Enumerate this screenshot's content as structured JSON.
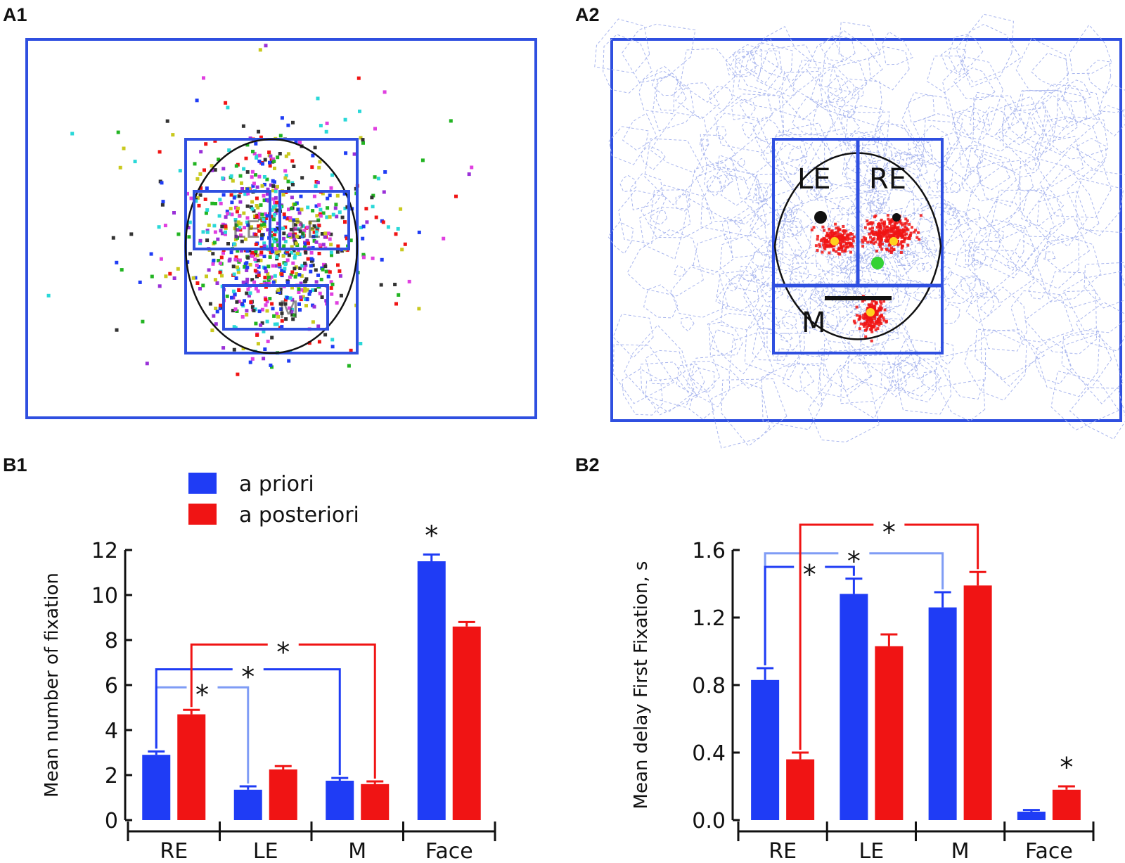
{
  "panels": {
    "a1": "A1",
    "a2": "A2",
    "b1": "B1",
    "b2": "B2"
  },
  "roi_labels": {
    "left_eye": "LE",
    "right_eye": "RE",
    "mouth": "M"
  },
  "colors": {
    "a_priori": "#1f3cf5",
    "a_posteriori": "#f01414",
    "frame": "#2f4fe0",
    "voronoi": "#a9b6ee",
    "sig_line_blue": "#1f3cf5",
    "sig_line_light_blue": "#7f9cf5",
    "sig_line_red": "#f01414"
  },
  "legend": [
    {
      "label": "a priori",
      "color": "#1f3cf5"
    },
    {
      "label": "a posteriori",
      "color": "#f01414"
    }
  ],
  "significance_symbol": "*",
  "chart_data": [
    {
      "id": "B1",
      "type": "bar",
      "title": "",
      "xlabel": "",
      "ylabel": "Mean number of fixation",
      "categories": [
        "RE",
        "LE",
        "M",
        "Face"
      ],
      "ylim": [
        0,
        12
      ],
      "yticks": [
        "0",
        "2",
        "4",
        "6",
        "8",
        "10",
        "12"
      ],
      "series": [
        {
          "name": "a priori",
          "values": [
            2.9,
            1.35,
            1.75,
            11.5
          ],
          "errors": [
            0.15,
            0.15,
            0.12,
            0.3
          ]
        },
        {
          "name": "a posteriori",
          "values": [
            4.7,
            2.25,
            1.6,
            8.6
          ],
          "errors": [
            0.2,
            0.15,
            0.12,
            0.2
          ]
        }
      ],
      "significance": [
        {
          "series": "a priori",
          "from": "RE",
          "to": "LE",
          "level": 5.9,
          "label": "*"
        },
        {
          "series": "a priori",
          "from": "RE",
          "to": "M",
          "level": 6.7,
          "label": "*"
        },
        {
          "series": "a posteriori",
          "from": "RE",
          "to": "M",
          "level": 7.8,
          "label": "*"
        },
        {
          "series": "a priori",
          "at": "Face",
          "label": "*"
        }
      ]
    },
    {
      "id": "B2",
      "type": "bar",
      "title": "",
      "xlabel": "",
      "ylabel": "Mean delay First Fixation, s",
      "categories": [
        "RE",
        "LE",
        "M",
        "Face"
      ],
      "ylim": [
        0,
        1.6
      ],
      "yticks": [
        "0.0",
        "0.4",
        "0.8",
        "1.2",
        "1.6"
      ],
      "series": [
        {
          "name": "a priori",
          "values": [
            0.83,
            1.34,
            1.26,
            0.05
          ],
          "errors": [
            0.07,
            0.09,
            0.09,
            0.01
          ]
        },
        {
          "name": "a posteriori",
          "values": [
            0.36,
            1.03,
            1.39,
            0.18
          ],
          "errors": [
            0.04,
            0.07,
            0.08,
            0.02
          ]
        }
      ],
      "significance": [
        {
          "series": "a priori",
          "from": "RE",
          "to": "M",
          "level": 1.58,
          "label": "*"
        },
        {
          "series": "a priori",
          "from": "RE",
          "to": "LE",
          "level": 1.5,
          "label": "*"
        },
        {
          "series": "a posteriori",
          "from": "RE",
          "to": "M",
          "level": 1.75,
          "label": "*"
        },
        {
          "series": "a posteriori",
          "at": "Face",
          "label": "*"
        }
      ]
    }
  ]
}
